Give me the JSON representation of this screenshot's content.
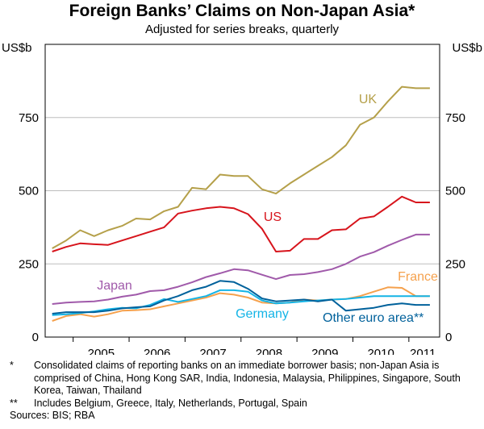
{
  "title": "Foreign Banks’ Claims on Non-Japan Asia*",
  "subtitle": "Adjusted for series breaks, quarterly",
  "notes": [
    {
      "mark": "*",
      "text": "Consolidated claims of reporting banks on an immediate borrower basis; non-Japan Asia is comprised of China, Hong Kong SAR, India, Indonesia, Malaysia, Philippines, Singapore, South Korea, Taiwan, Thailand"
    },
    {
      "mark": "**",
      "text": "Includes Belgium, Greece, Italy, Netherlands, Portugal, Spain"
    }
  ],
  "sources": "Sources: BIS; RBA",
  "chart_data": {
    "type": "line",
    "ylabel_left": "US$b",
    "ylabel_right": "US$b",
    "ylim": [
      0,
      1000
    ],
    "yticks": [
      0,
      250,
      500,
      750
    ],
    "x_tick_labels": [
      "2005",
      "2006",
      "2007",
      "2008",
      "2009",
      "2010",
      "2011"
    ],
    "x": [
      "2004-Q3",
      "2004-Q4",
      "2005-Q1",
      "2005-Q2",
      "2005-Q3",
      "2005-Q4",
      "2006-Q1",
      "2006-Q2",
      "2006-Q3",
      "2006-Q4",
      "2007-Q1",
      "2007-Q2",
      "2007-Q3",
      "2007-Q4",
      "2008-Q1",
      "2008-Q2",
      "2008-Q3",
      "2008-Q4",
      "2009-Q1",
      "2009-Q2",
      "2009-Q3",
      "2009-Q4",
      "2010-Q1",
      "2010-Q2",
      "2010-Q3",
      "2010-Q4",
      "2011-Q1",
      "2011-Q2"
    ],
    "series": [
      {
        "name": "UK",
        "color": "#b5a04a",
        "values": [
          303,
          330,
          365,
          345,
          365,
          380,
          405,
          402,
          430,
          445,
          510,
          505,
          555,
          550,
          550,
          505,
          490,
          525,
          555,
          585,
          615,
          655,
          725,
          750,
          805,
          855,
          850,
          850
        ]
      },
      {
        "name": "US",
        "color": "#d7141c",
        "values": [
          292,
          308,
          320,
          317,
          315,
          330,
          345,
          360,
          375,
          422,
          432,
          440,
          445,
          440,
          420,
          370,
          292,
          295,
          335,
          335,
          365,
          368,
          405,
          412,
          445,
          480,
          460,
          460
        ]
      },
      {
        "name": "Japan",
        "color": "#a05aaa",
        "values": [
          113,
          118,
          120,
          122,
          128,
          138,
          145,
          157,
          160,
          172,
          187,
          205,
          218,
          232,
          228,
          213,
          198,
          212,
          215,
          222,
          232,
          250,
          275,
          290,
          312,
          332,
          350,
          350
        ]
      },
      {
        "name": "France",
        "color": "#f5a14d",
        "values": [
          55,
          72,
          78,
          70,
          78,
          90,
          92,
          95,
          105,
          115,
          125,
          135,
          150,
          145,
          135,
          118,
          115,
          118,
          128,
          125,
          128,
          130,
          140,
          155,
          170,
          168,
          140,
          140
        ]
      },
      {
        "name": "Germany",
        "color": "#14b4e6",
        "values": [
          75,
          78,
          82,
          88,
          95,
          100,
          98,
          110,
          130,
          120,
          130,
          140,
          160,
          160,
          155,
          125,
          115,
          118,
          122,
          125,
          128,
          130,
          135,
          140,
          140,
          140,
          140,
          140
        ]
      },
      {
        "name": "Other euro area**",
        "color": "#00619b",
        "values": [
          80,
          85,
          85,
          85,
          90,
          98,
          102,
          105,
          125,
          140,
          160,
          172,
          192,
          188,
          165,
          132,
          122,
          125,
          128,
          122,
          128,
          90,
          95,
          100,
          110,
          115,
          110,
          110
        ]
      }
    ],
    "label_positions": {
      "UK": "upper-right",
      "US": "middle-right",
      "Japan": "lower-left",
      "France": "lower-right",
      "Germany": "bottom-center",
      "Other euro area**": "bottom-right"
    }
  }
}
